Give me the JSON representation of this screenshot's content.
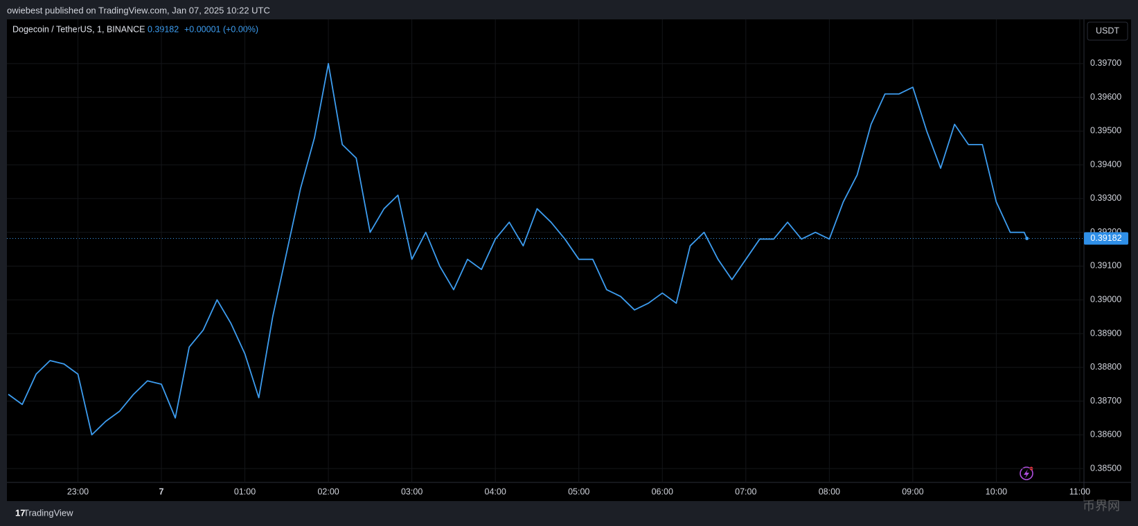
{
  "header": {
    "publisher": "owiebest published on TradingView.com, Jan 07, 2025 10:22 UTC"
  },
  "footer": {
    "brand": "TradingView",
    "watermark": "币界网"
  },
  "chart_data": {
    "type": "line",
    "currency": "USDT",
    "change": "+0.00001 (+0.00%)",
    "last_price": {
      "value": 0.39182,
      "label": "0.39182"
    },
    "x": [
      "22:10",
      "22:20",
      "22:30",
      "22:40",
      "22:50",
      "23:00",
      "23:10",
      "23:20",
      "23:30",
      "23:40",
      "23:50",
      "00:00",
      "00:10",
      "00:20",
      "00:30",
      "00:40",
      "00:50",
      "01:00",
      "01:10",
      "01:20",
      "01:30",
      "01:40",
      "01:50",
      "02:00",
      "02:10",
      "02:20",
      "02:30",
      "02:40",
      "02:50",
      "03:00",
      "03:10",
      "03:20",
      "03:30",
      "03:40",
      "03:50",
      "04:00",
      "04:10",
      "04:20",
      "04:30",
      "04:40",
      "04:50",
      "05:00",
      "05:10",
      "05:20",
      "05:30",
      "05:40",
      "05:50",
      "06:00",
      "06:10",
      "06:20",
      "06:30",
      "06:40",
      "06:50",
      "07:00",
      "07:10",
      "07:20",
      "07:30",
      "07:40",
      "07:50",
      "08:00",
      "08:10",
      "08:20",
      "08:30",
      "08:40",
      "08:50",
      "09:00",
      "09:10",
      "09:20",
      "09:30",
      "09:40",
      "09:50",
      "10:00",
      "10:10",
      "10:20",
      "10:22"
    ],
    "series": [
      {
        "name": "Dogecoin / TetherUS, 1, BINANCE",
        "color": "#3d9df0",
        "values": [
          0.3872,
          0.3869,
          0.3878,
          0.3882,
          0.3881,
          0.3878,
          0.386,
          0.3864,
          0.3867,
          0.3872,
          0.3876,
          0.3875,
          0.3865,
          0.3886,
          0.3891,
          0.39,
          0.3893,
          0.3884,
          0.3871,
          0.3895,
          0.3914,
          0.3933,
          0.3948,
          0.397,
          0.3946,
          0.3942,
          0.392,
          0.3927,
          0.3931,
          0.3912,
          0.392,
          0.391,
          0.3903,
          0.3912,
          0.3909,
          0.3918,
          0.3923,
          0.3916,
          0.3927,
          0.3923,
          0.3918,
          0.3912,
          0.3912,
          0.3903,
          0.3901,
          0.3897,
          0.3899,
          0.3902,
          0.3899,
          0.3916,
          0.392,
          0.3912,
          0.3906,
          0.3912,
          0.3918,
          0.3918,
          0.3923,
          0.3918,
          0.392,
          0.3918,
          0.3929,
          0.3937,
          0.3952,
          0.3961,
          0.3961,
          0.3963,
          0.395,
          0.3939,
          0.3952,
          0.3946,
          0.3946,
          0.3929,
          0.392,
          0.392,
          0.39182
        ]
      }
    ],
    "xlim": [
      "22:09",
      "11:03"
    ],
    "xticks": [
      {
        "value": "23:00",
        "label": "23:00"
      },
      {
        "value": "00:00",
        "label": "7"
      },
      {
        "value": "01:00",
        "label": "01:00"
      },
      {
        "value": "02:00",
        "label": "02:00"
      },
      {
        "value": "03:00",
        "label": "03:00"
      },
      {
        "value": "04:00",
        "label": "04:00"
      },
      {
        "value": "05:00",
        "label": "05:00"
      },
      {
        "value": "06:00",
        "label": "06:00"
      },
      {
        "value": "07:00",
        "label": "07:00"
      },
      {
        "value": "08:00",
        "label": "08:00"
      },
      {
        "value": "09:00",
        "label": "09:00"
      },
      {
        "value": "10:00",
        "label": "10:00"
      },
      {
        "value": "11:00",
        "label": "11:00"
      }
    ],
    "ylim": [
      0.38459,
      0.39831
    ],
    "yticks": [
      {
        "value": 0.385,
        "label": "0.38500"
      },
      {
        "value": 0.386,
        "label": "0.38600"
      },
      {
        "value": 0.387,
        "label": "0.38700"
      },
      {
        "value": 0.388,
        "label": "0.38800"
      },
      {
        "value": 0.389,
        "label": "0.38900"
      },
      {
        "value": 0.39,
        "label": "0.39000"
      },
      {
        "value": 0.391,
        "label": "0.39100"
      },
      {
        "value": 0.392,
        "label": "0.39200"
      },
      {
        "value": 0.393,
        "label": "0.39300"
      },
      {
        "value": 0.394,
        "label": "0.39400"
      },
      {
        "value": 0.395,
        "label": "0.39500"
      },
      {
        "value": 0.396,
        "label": "0.39600"
      },
      {
        "value": 0.397,
        "label": "0.39700"
      }
    ],
    "grid": true
  }
}
